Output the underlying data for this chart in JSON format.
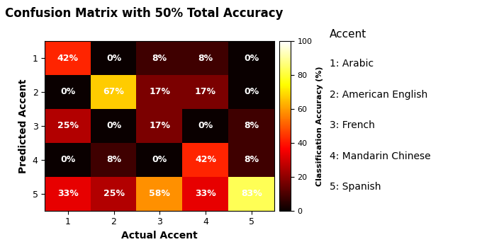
{
  "title": "Confusion Matrix with 50% Total Accuracy",
  "matrix": [
    [
      42,
      0,
      8,
      8,
      0
    ],
    [
      0,
      67,
      17,
      17,
      0
    ],
    [
      25,
      0,
      17,
      0,
      8
    ],
    [
      0,
      8,
      0,
      42,
      8
    ],
    [
      33,
      25,
      58,
      33,
      83
    ]
  ],
  "xlabel": "Actual Accent",
  "ylabel": "Predicted Accent",
  "colorbar_label": "Classification Accuracy (%)",
  "tick_labels": [
    "1",
    "2",
    "3",
    "4",
    "5"
  ],
  "legend_title": "Accent",
  "legend_items": [
    "1: Arabic",
    "2: American English",
    "3: French",
    "4: Mandarin Chinese",
    "5: Spanish"
  ],
  "vmin": 0,
  "vmax": 100,
  "colormap": "hot",
  "text_color": "white",
  "legend_bg": "#e8e8e8",
  "title_fontsize": 12,
  "label_fontsize": 10,
  "tick_fontsize": 9,
  "cell_fontsize": 9,
  "colorbar_label_fontsize": 8,
  "legend_title_fontsize": 11,
  "legend_item_fontsize": 10
}
